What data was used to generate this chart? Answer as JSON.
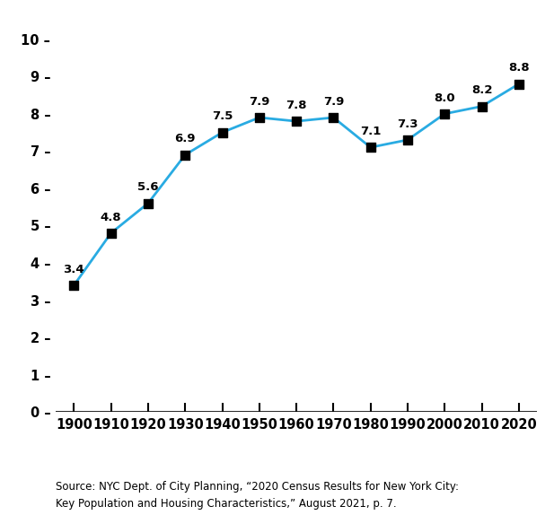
{
  "years": [
    1900,
    1910,
    1920,
    1930,
    1940,
    1950,
    1960,
    1970,
    1980,
    1990,
    2000,
    2010,
    2020
  ],
  "values": [
    3.4,
    4.8,
    5.6,
    6.9,
    7.5,
    7.9,
    7.8,
    7.9,
    7.1,
    7.3,
    8.0,
    8.2,
    8.8
  ],
  "line_color": "#29ABE2",
  "marker_color": "#000000",
  "marker_size": 55,
  "line_width": 2.0,
  "ylim": [
    0,
    10.5
  ],
  "yticks": [
    0,
    1,
    2,
    3,
    4,
    5,
    6,
    7,
    8,
    9,
    10
  ],
  "background_color": "#ffffff",
  "source_text": "Source: NYC Dept. of City Planning, “2020 Census Results for New York City:\nKey Population and Housing Characteristics,” August 2021, p. 7.",
  "annotation_fontsize": 9.5,
  "tick_fontsize": 10.5,
  "source_fontsize": 8.5,
  "xlim_left": 1895,
  "xlim_right": 2025
}
